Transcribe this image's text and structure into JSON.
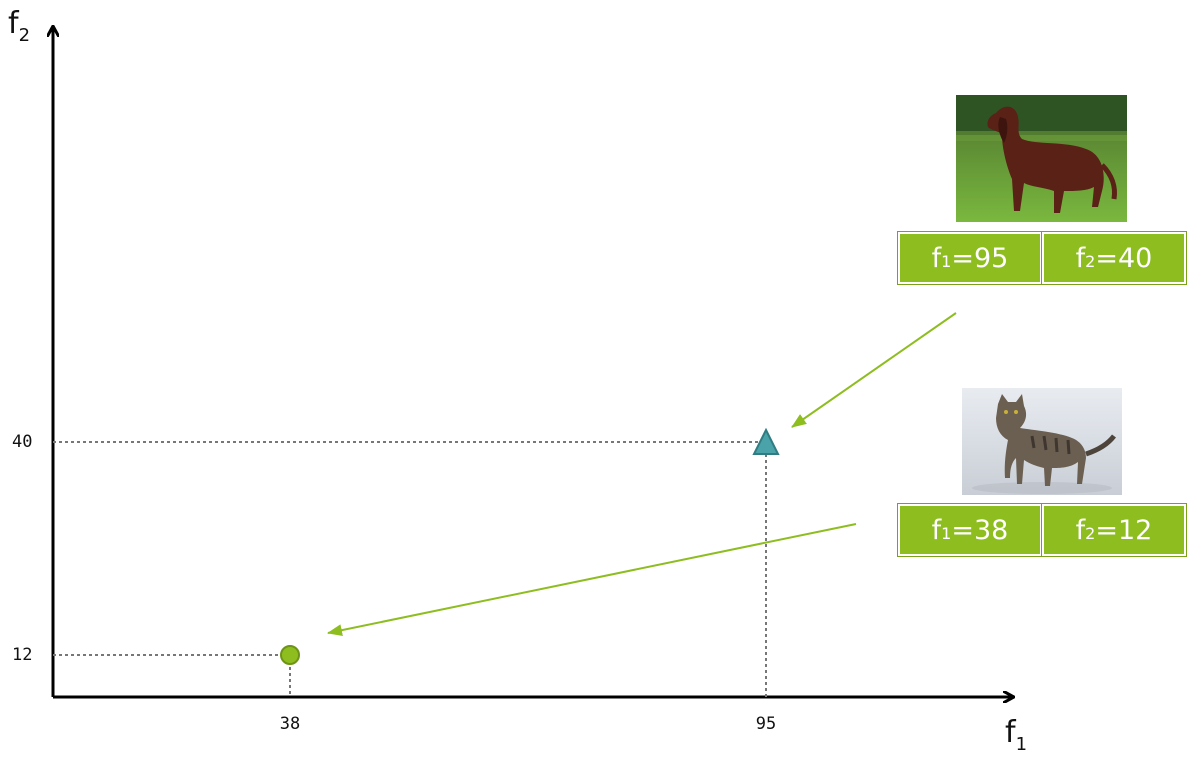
{
  "axes": {
    "x_label": "f",
    "x_sub": "1",
    "y_label": "f",
    "y_sub": "2"
  },
  "ticks": {
    "x": [
      "38",
      "95"
    ],
    "y": [
      "40",
      "12"
    ]
  },
  "points": [
    {
      "name": "cat",
      "f1": 38,
      "f2": 12,
      "marker": "circle",
      "color": "#8ebd20"
    },
    {
      "name": "dog",
      "f1": 95,
      "f2": 40,
      "marker": "triangle",
      "color": "#4aa3a8"
    }
  ],
  "dog_features": [
    {
      "var": "f",
      "sub": "1",
      "value": "=95"
    },
    {
      "var": "f",
      "sub": "2",
      "value": "=40"
    }
  ],
  "cat_features": [
    {
      "var": "f",
      "sub": "1",
      "value": "=38"
    },
    {
      "var": "f",
      "sub": "2",
      "value": "=12"
    }
  ],
  "colors": {
    "accent": "#8ebd20",
    "triangle": "#4aa3a8",
    "guide": "#777777"
  }
}
